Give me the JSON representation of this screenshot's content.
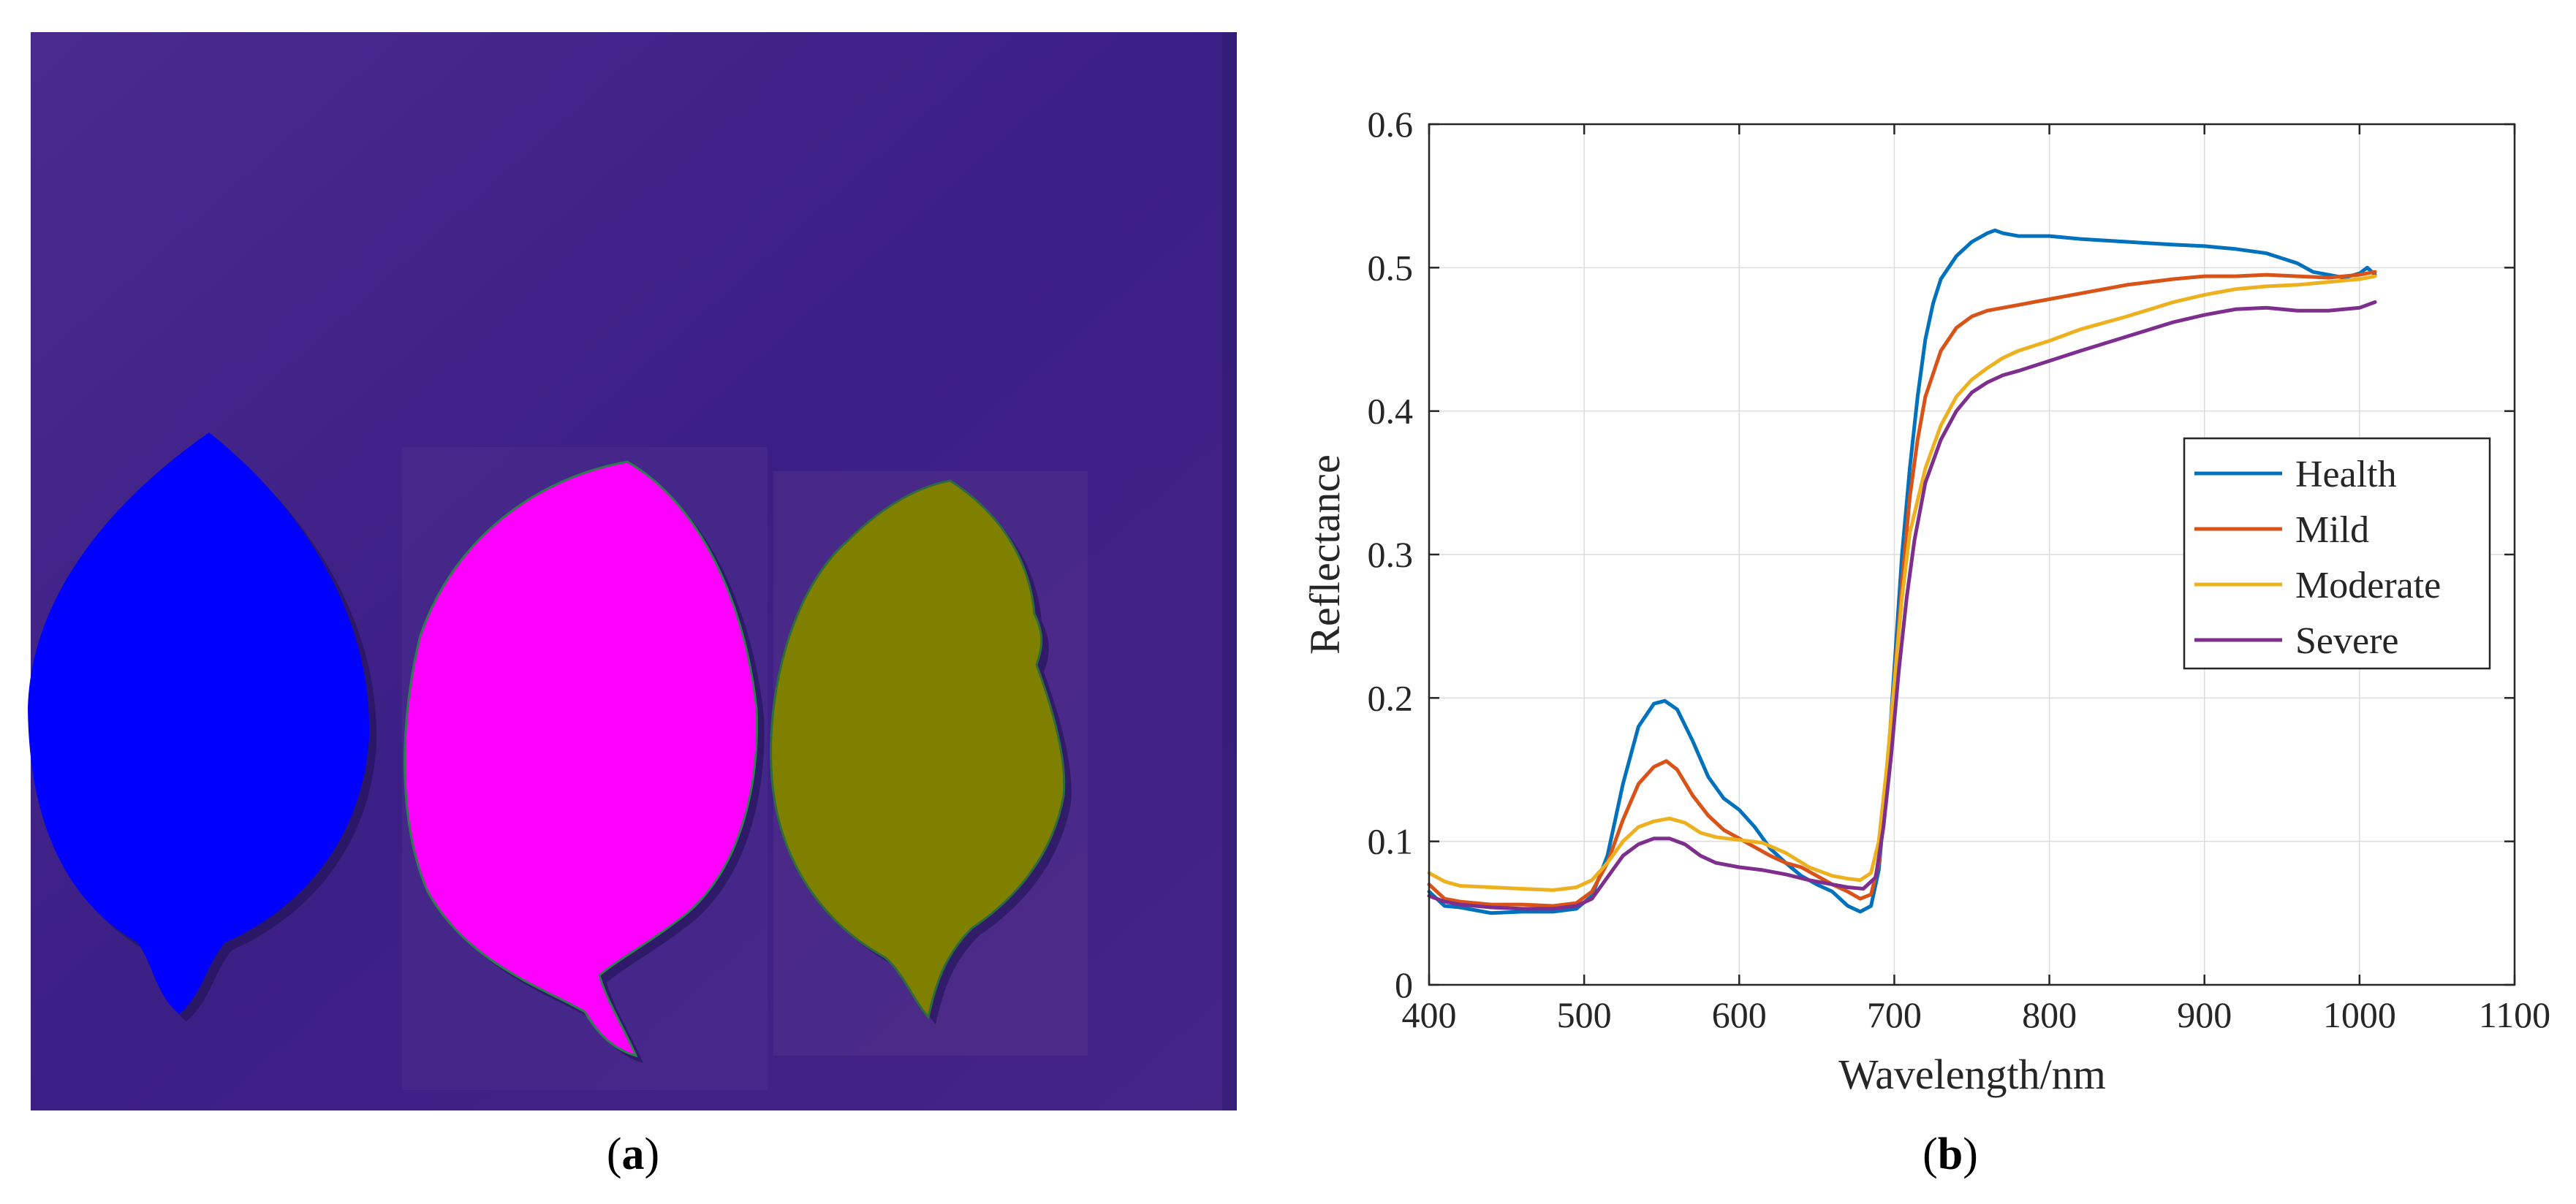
{
  "panels": {
    "a": {
      "label_letter": "a"
    },
    "b": {
      "label_letter": "b"
    }
  },
  "colors": {
    "image_background": "#3f1f86",
    "leaf_health": "#0000ff",
    "leaf_mild": "#ff00ff",
    "leaf_moderate": "#808000",
    "grid": "#dcdcdc",
    "axis": "#262626"
  },
  "chart_data": {
    "type": "line",
    "title": "",
    "xlabel": "Wavelength/nm",
    "ylabel": "Reflectance",
    "xlim": [
      400,
      1100
    ],
    "ylim": [
      0,
      0.6
    ],
    "xticks": [
      400,
      500,
      600,
      700,
      800,
      900,
      1000,
      1100
    ],
    "yticks": [
      0,
      0.1,
      0.2,
      0.3,
      0.4,
      0.5,
      0.6
    ],
    "xtick_labels": [
      "400",
      "500",
      "600",
      "700",
      "800",
      "900",
      "1000",
      "1100"
    ],
    "ytick_labels": [
      "0",
      "0.1",
      "0.2",
      "0.3",
      "0.4",
      "0.5",
      "0.6"
    ],
    "grid": true,
    "legend_position": "right",
    "series": [
      {
        "name": "Health",
        "color": "#0072BD",
        "x": [
          400,
          410,
          420,
          440,
          460,
          480,
          495,
          505,
          515,
          525,
          535,
          545,
          552,
          560,
          570,
          580,
          590,
          600,
          610,
          620,
          630,
          640,
          650,
          660,
          670,
          678,
          685,
          690,
          695,
          700,
          705,
          710,
          715,
          720,
          725,
          730,
          740,
          750,
          760,
          765,
          770,
          780,
          800,
          820,
          850,
          880,
          900,
          920,
          940,
          960,
          970,
          980,
          990,
          1000,
          1005,
          1010
        ],
        "y": [
          0.065,
          0.055,
          0.054,
          0.05,
          0.051,
          0.051,
          0.053,
          0.062,
          0.09,
          0.14,
          0.18,
          0.196,
          0.198,
          0.192,
          0.17,
          0.145,
          0.13,
          0.122,
          0.11,
          0.095,
          0.085,
          0.076,
          0.07,
          0.065,
          0.055,
          0.051,
          0.055,
          0.08,
          0.14,
          0.22,
          0.3,
          0.36,
          0.41,
          0.45,
          0.475,
          0.492,
          0.508,
          0.518,
          0.524,
          0.526,
          0.524,
          0.522,
          0.522,
          0.52,
          0.518,
          0.516,
          0.515,
          0.513,
          0.51,
          0.503,
          0.497,
          0.495,
          0.493,
          0.496,
          0.5,
          0.495
        ]
      },
      {
        "name": "Mild",
        "color": "#D95319",
        "x": [
          400,
          410,
          420,
          440,
          460,
          480,
          495,
          505,
          515,
          525,
          535,
          545,
          553,
          560,
          570,
          580,
          590,
          600,
          610,
          620,
          630,
          640,
          650,
          660,
          670,
          678,
          685,
          690,
          695,
          700,
          705,
          710,
          715,
          720,
          730,
          740,
          750,
          760,
          770,
          780,
          800,
          820,
          850,
          880,
          900,
          920,
          940,
          960,
          980,
          1000,
          1010
        ],
        "y": [
          0.07,
          0.06,
          0.058,
          0.056,
          0.056,
          0.055,
          0.057,
          0.065,
          0.085,
          0.115,
          0.14,
          0.152,
          0.156,
          0.15,
          0.132,
          0.118,
          0.108,
          0.102,
          0.096,
          0.09,
          0.085,
          0.082,
          0.076,
          0.07,
          0.065,
          0.06,
          0.063,
          0.085,
          0.14,
          0.21,
          0.28,
          0.34,
          0.38,
          0.41,
          0.442,
          0.458,
          0.466,
          0.47,
          0.472,
          0.474,
          0.478,
          0.482,
          0.488,
          0.492,
          0.494,
          0.494,
          0.495,
          0.494,
          0.493,
          0.495,
          0.497
        ]
      },
      {
        "name": "Moderate",
        "color": "#EDB120",
        "x": [
          400,
          410,
          420,
          440,
          460,
          480,
          495,
          505,
          515,
          525,
          535,
          545,
          555,
          565,
          575,
          585,
          600,
          615,
          630,
          645,
          660,
          670,
          678,
          685,
          690,
          695,
          700,
          705,
          710,
          720,
          730,
          740,
          750,
          760,
          770,
          780,
          800,
          820,
          850,
          880,
          900,
          920,
          940,
          960,
          980,
          1000,
          1010
        ],
        "y": [
          0.078,
          0.072,
          0.069,
          0.068,
          0.067,
          0.066,
          0.068,
          0.073,
          0.085,
          0.1,
          0.11,
          0.114,
          0.116,
          0.113,
          0.106,
          0.103,
          0.101,
          0.099,
          0.092,
          0.082,
          0.076,
          0.074,
          0.073,
          0.078,
          0.1,
          0.15,
          0.21,
          0.27,
          0.315,
          0.36,
          0.39,
          0.41,
          0.422,
          0.43,
          0.437,
          0.442,
          0.449,
          0.457,
          0.466,
          0.476,
          0.481,
          0.485,
          0.487,
          0.488,
          0.49,
          0.492,
          0.494
        ]
      },
      {
        "name": "Severe",
        "color": "#7E2F8E",
        "x": [
          400,
          410,
          420,
          440,
          460,
          480,
          495,
          505,
          515,
          525,
          535,
          545,
          555,
          565,
          575,
          585,
          600,
          615,
          630,
          645,
          660,
          670,
          680,
          688,
          693,
          698,
          703,
          708,
          713,
          720,
          730,
          740,
          750,
          760,
          770,
          780,
          800,
          820,
          850,
          880,
          900,
          920,
          940,
          960,
          980,
          1000,
          1010
        ],
        "y": [
          0.062,
          0.058,
          0.056,
          0.054,
          0.053,
          0.053,
          0.055,
          0.06,
          0.075,
          0.09,
          0.098,
          0.102,
          0.102,
          0.098,
          0.09,
          0.085,
          0.082,
          0.08,
          0.077,
          0.073,
          0.07,
          0.068,
          0.067,
          0.075,
          0.11,
          0.16,
          0.22,
          0.27,
          0.31,
          0.35,
          0.38,
          0.4,
          0.413,
          0.42,
          0.425,
          0.428,
          0.435,
          0.442,
          0.452,
          0.462,
          0.467,
          0.471,
          0.472,
          0.47,
          0.47,
          0.472,
          0.476
        ]
      }
    ]
  }
}
